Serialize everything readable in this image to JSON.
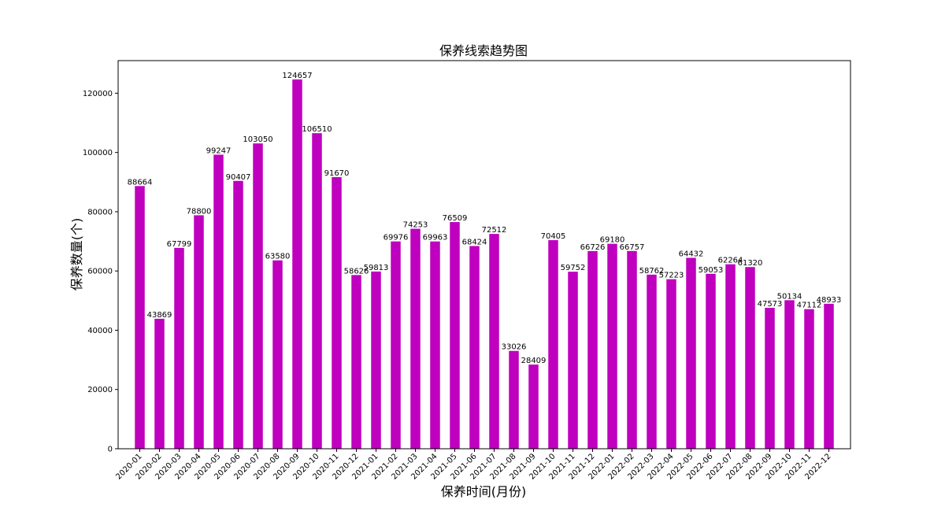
{
  "chart_data": {
    "type": "bar",
    "title": "保养线索趋势图",
    "xlabel": "保养时间(月份)",
    "ylabel": "保养数量(个)",
    "ylim": [
      0,
      131000
    ],
    "yticks": [
      0,
      20000,
      40000,
      60000,
      80000,
      100000,
      120000
    ],
    "bar_color": "#bf00bf",
    "grid": false,
    "categories": [
      "2020-01",
      "2020-02",
      "2020-03",
      "2020-04",
      "2020-05",
      "2020-06",
      "2020-07",
      "2020-08",
      "2020-09",
      "2020-10",
      "2020-11",
      "2020-12",
      "2021-01",
      "2021-02",
      "2021-03",
      "2021-04",
      "2021-05",
      "2021-06",
      "2021-07",
      "2021-08",
      "2021-09",
      "2021-10",
      "2021-11",
      "2021-12",
      "2022-01",
      "2022-02",
      "2022-03",
      "2022-04",
      "2022-05",
      "2022-06",
      "2022-07",
      "2022-08",
      "2022-09",
      "2022-10",
      "2022-11",
      "2022-12"
    ],
    "values": [
      88664,
      43869,
      67799,
      78800,
      99247,
      90407,
      103050,
      63580,
      124657,
      106510,
      91670,
      58626,
      59813,
      69976,
      74253,
      69963,
      76509,
      68424,
      72512,
      33026,
      28409,
      70405,
      59752,
      66726,
      69180,
      66757,
      58762,
      57223,
      64432,
      59053,
      62264,
      61320,
      47573,
      50134,
      47112,
      48933
    ]
  }
}
